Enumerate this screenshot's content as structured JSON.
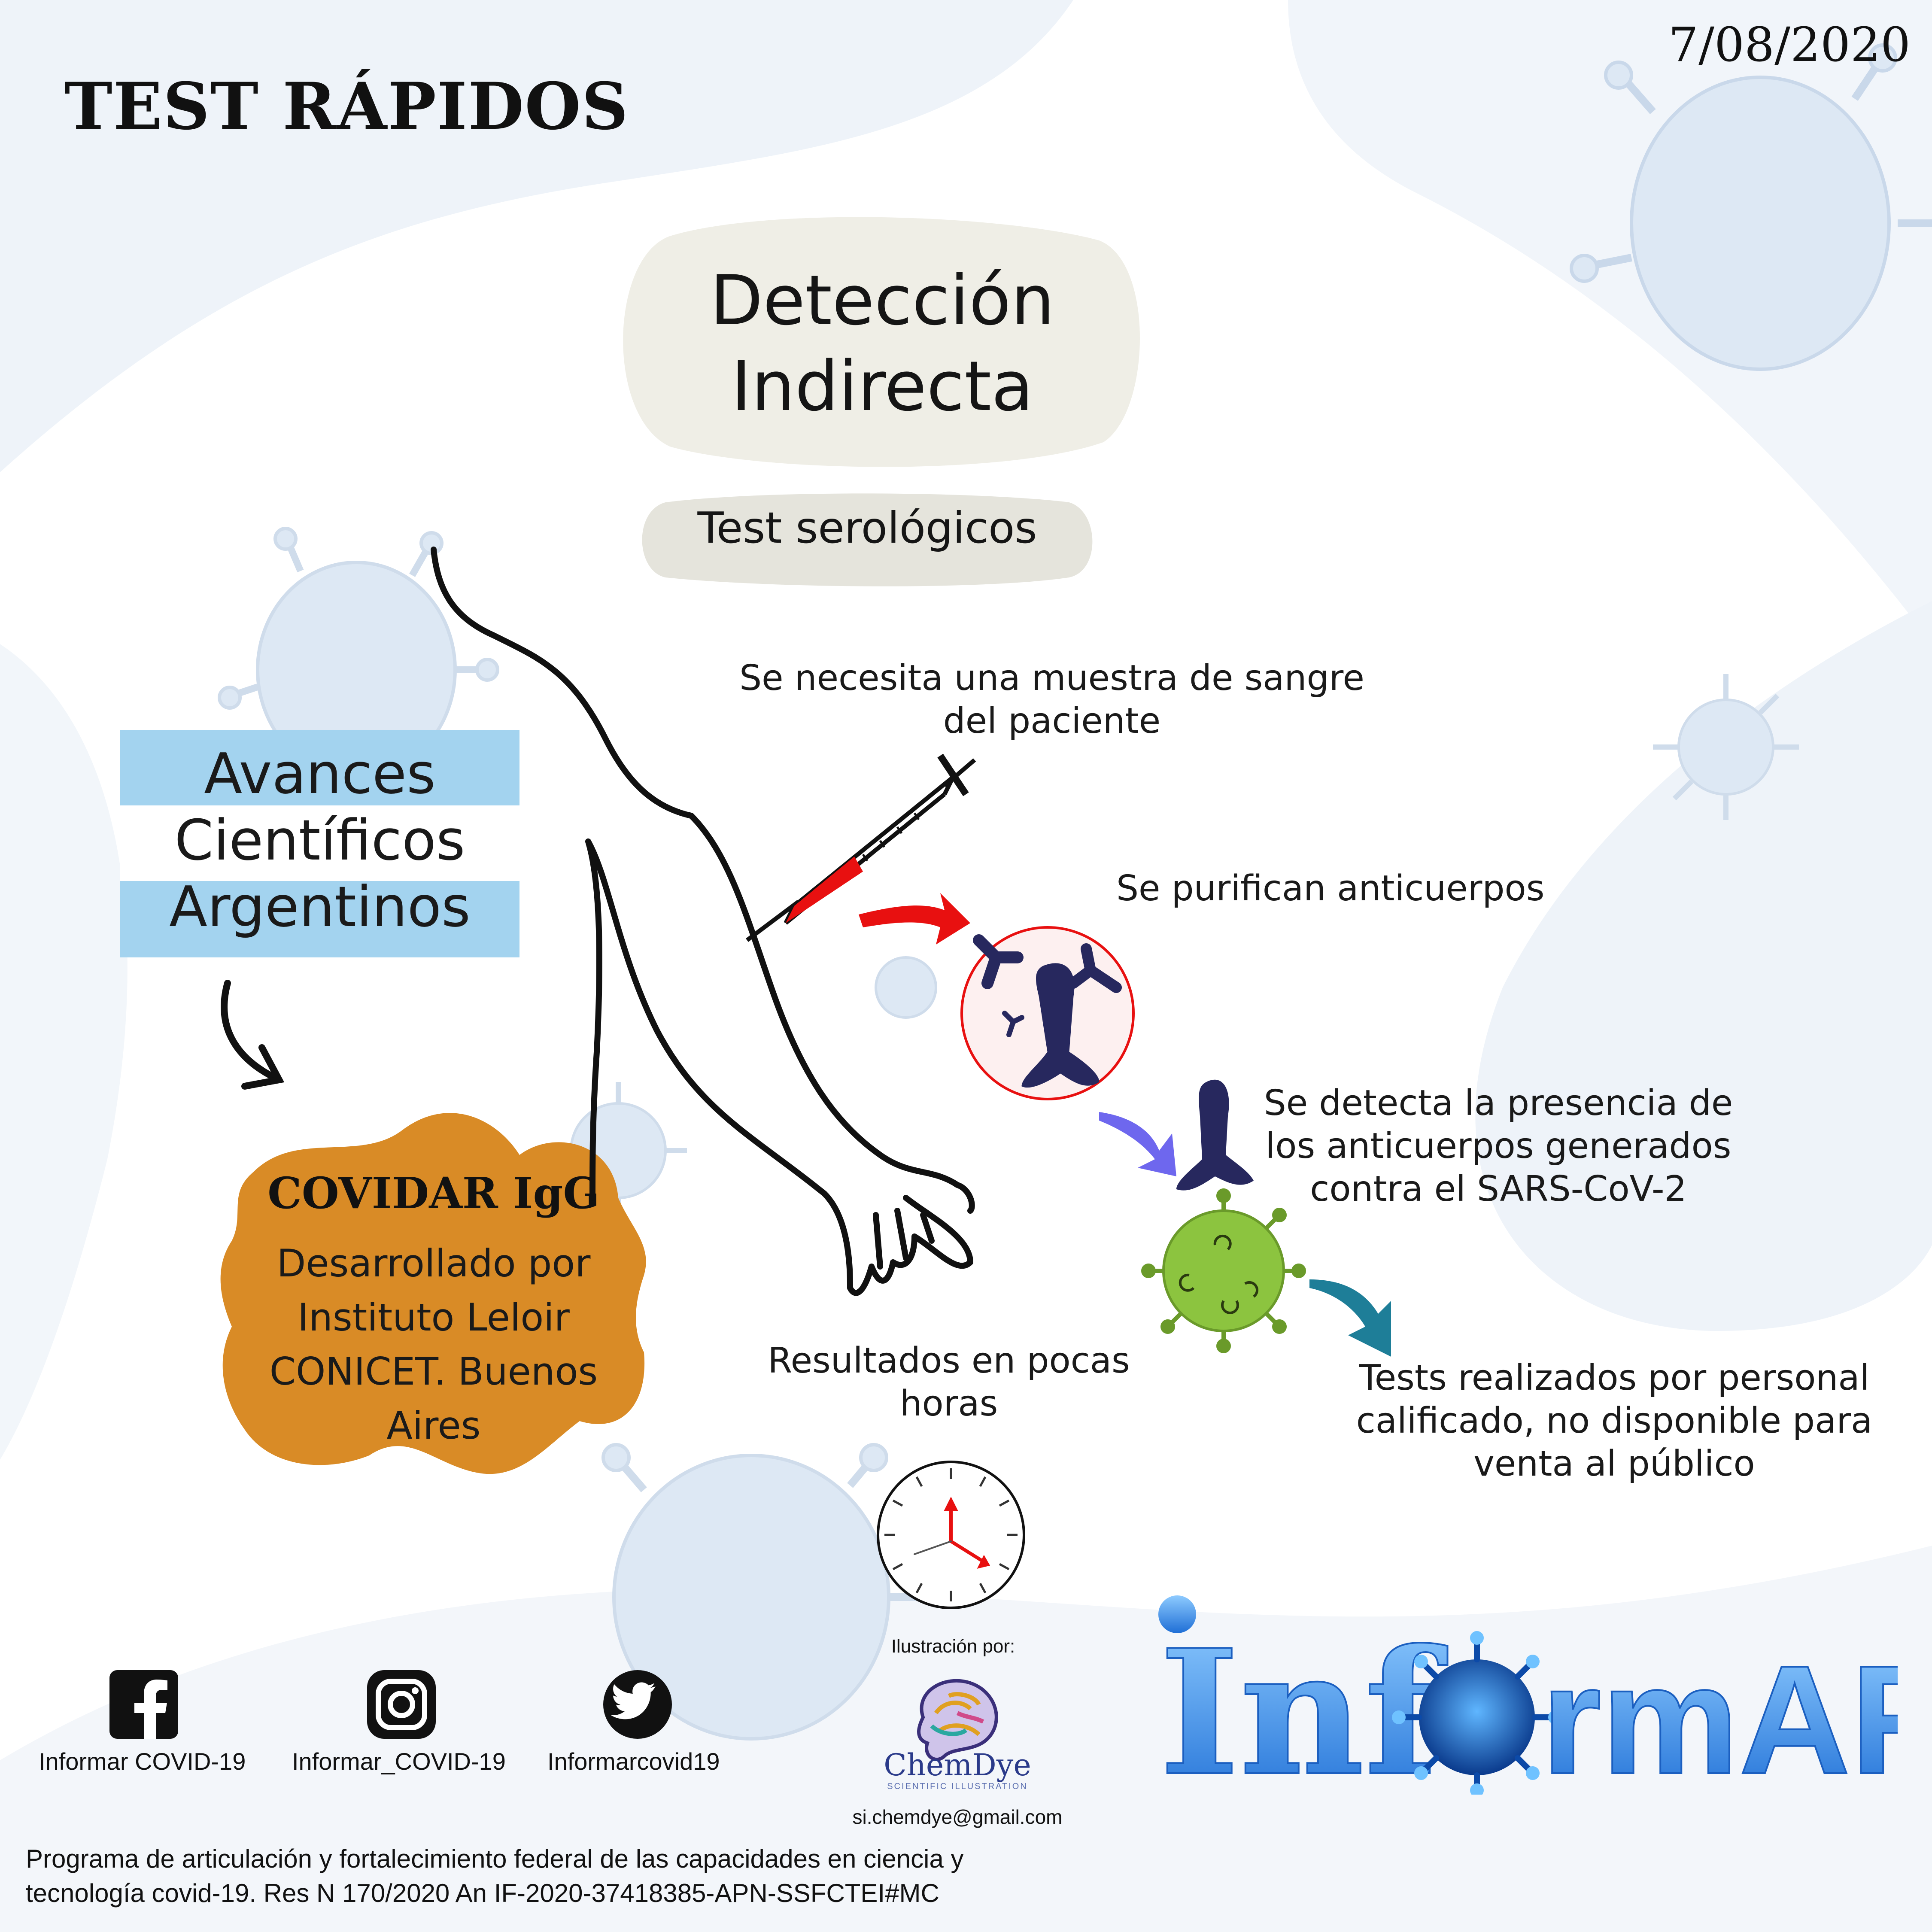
{
  "header": {
    "title": "TEST RÁPIDOS",
    "date": "7/08/2020"
  },
  "detection": {
    "title_line1": "Detección",
    "title_line2": "Indirecta",
    "subtitle": "Test serológicos"
  },
  "flag_banner": {
    "line1": "Avances",
    "line2": "Científicos",
    "line3": "Argentinos"
  },
  "covidar": {
    "title": "COVIDAR IgG",
    "desc_line1": "Desarrollado por",
    "desc_line2": "Instituto Leloir",
    "desc_line3": "CONICET. Buenos",
    "desc_line4": "Aires"
  },
  "steps": {
    "blood_line1": "Se necesita una muestra de sangre",
    "blood_line2": "del paciente",
    "purify": "Se purifican anticuerpos",
    "detect_line1": "Se detecta la presencia de",
    "detect_line2": "los anticuerpos generados",
    "detect_line3": "contra el SARS-CoV-2",
    "results_line1": "Resultados en pocas",
    "results_line2": "horas",
    "staff_line1": "Tests realizados por personal",
    "staff_line2": "calificado, no disponible para",
    "staff_line3": "venta al público"
  },
  "social": {
    "facebook": "Informar COVID-19",
    "instagram": "Informar_COVID-19",
    "twitter": "Informarcovid19"
  },
  "credits": {
    "illustration_label": "Ilustración por:",
    "studio_name": "ChemDye",
    "studio_sub": "SCIENTIFIC ILLUSTRATION",
    "email": "si.chemdye@gmail.com"
  },
  "brand": {
    "prefix": "Inf",
    "suffix": "rmAR"
  },
  "footer": {
    "line1": "Programa de articulación y fortalecimiento federal de las capacidades en ciencia y",
    "line2": "tecnología covid-19. Res N 170/2020 An IF-2020-37418385-APN-SSFCTEI#MC"
  },
  "colors": {
    "background_wave": "#eef3f9",
    "pale_virus": "#dde8f4",
    "bubble": "#efeee6",
    "pill": "#e5e4dc",
    "flag_blue": "#a3d3ef",
    "covidar_orange": "#d98b26",
    "antibody": "#27285e",
    "virus_green": "#8cc43f",
    "blood_red": "#e81010",
    "arrow_purple": "#6e67ee",
    "arrow_teal": "#1e7e98",
    "brand_blue": "#3a8fe6"
  }
}
